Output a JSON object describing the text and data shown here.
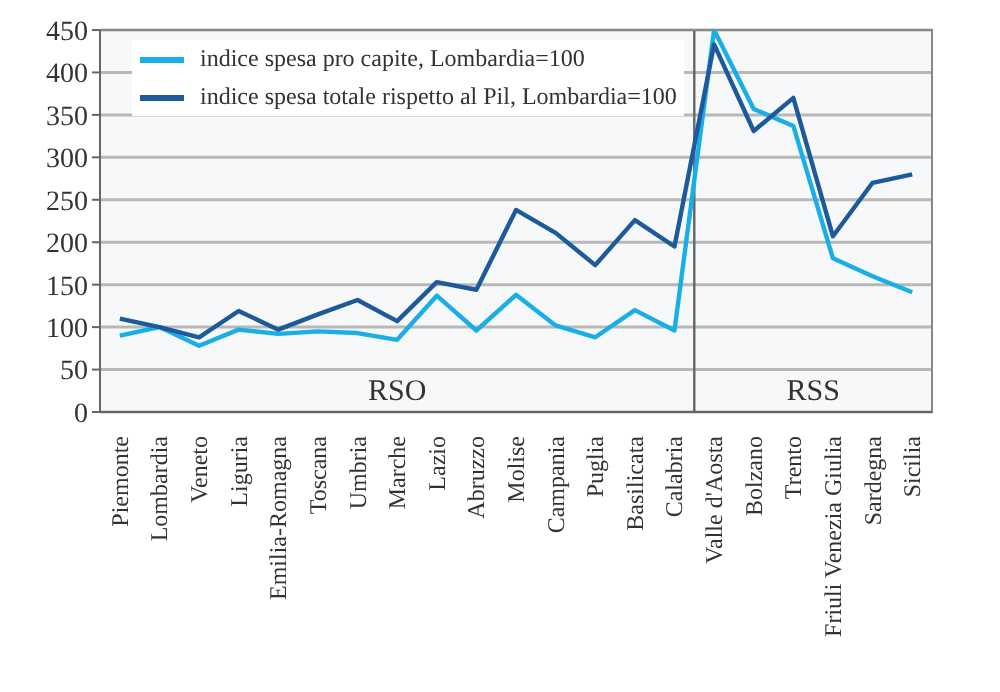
{
  "chart_data": {
    "type": "line",
    "categories": [
      "Piemonte",
      "Lombardia",
      "Veneto",
      "Liguria",
      "Emilia-Romagna",
      "Toscana",
      "Umbria",
      "Marche",
      "Lazio",
      "Abruzzo",
      "Molise",
      "Campania",
      "Puglia",
      "Basilicata",
      "Calabria",
      "Valle d'Aosta",
      "Bolzano",
      "Trento",
      "Friuli Venezia Giulia",
      "Sardegna",
      "Sicilia"
    ],
    "series": [
      {
        "name": "indice spesa pro capite, Lombardia=100",
        "color": "#1aaee6",
        "values": [
          90,
          100,
          78,
          97,
          92,
          95,
          93,
          85,
          137,
          96,
          138,
          102,
          88,
          120,
          96,
          450,
          357,
          337,
          181,
          160,
          141
        ]
      },
      {
        "name": "indice spesa totale rispetto al Pil, Lombardia=100",
        "color": "#1d5a9c",
        "values": [
          110,
          100,
          88,
          119,
          97,
          115,
          132,
          107,
          153,
          144,
          238,
          211,
          173,
          226,
          195,
          433,
          331,
          370,
          207,
          270,
          280
        ]
      }
    ],
    "ylim": [
      0,
      450
    ],
    "yticks": [
      0,
      50,
      100,
      150,
      200,
      250,
      300,
      350,
      400,
      450
    ],
    "grid": "y",
    "legend": "top left",
    "marker": "none",
    "line_style": "solid",
    "bands": [
      {
        "axis": "x",
        "from": "Piemonte",
        "to": "Calabria",
        "label": "RSO"
      },
      {
        "axis": "x",
        "from": "Valle d'Aosta",
        "to": "Sicilia",
        "label": "RSS"
      }
    ]
  }
}
